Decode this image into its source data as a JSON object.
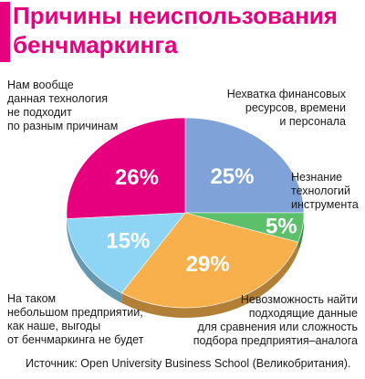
{
  "title": {
    "line1": "Причины неиспользования",
    "line2": "бенчмаркинга"
  },
  "colors": {
    "accent": "#e6007e"
  },
  "chart_data": {
    "type": "pie",
    "title": "Причины неиспользования бенчмаркинга",
    "slices": [
      {
        "label": "Нехватка финансовых ресурсов, времени и персонала",
        "value": 25,
        "value_label": "25%",
        "color": "#7fa3d8"
      },
      {
        "label": "Незнание технологий инструмента",
        "value": 5,
        "value_label": "5%",
        "color": "#5cc06a"
      },
      {
        "label": "Невозможность найти подходящие данные для сравнения или сложность подбора предприятия–аналога",
        "value": 29,
        "value_label": "29%",
        "color": "#f7b04c"
      },
      {
        "label": "На таком небольшом предприятии, как наше, выгоды от бенчмаркинга не будет",
        "value": 15,
        "value_label": "15%",
        "color": "#8ed4f5"
      },
      {
        "label": "Нам вообще данная технология не подходит по разным причинам",
        "value": 26,
        "value_label": "26%",
        "color": "#e6007e"
      }
    ]
  },
  "labels": {
    "top_left": [
      "Нам вообще",
      "данная технология",
      "не подходит",
      "по разным причинам"
    ],
    "top_right": [
      "Нехватка финансовых",
      "ресурсов, времени",
      "и персонала"
    ],
    "right": [
      "Незнание",
      "технологий",
      "инструмента"
    ],
    "bottom_left": [
      "На таком",
      "небольшом предприятии,",
      "как наше, выгоды",
      "от бенчмаркинга не будет"
    ],
    "bottom_right": [
      "Невозможность найти",
      "подходящие данные",
      "для сравнения или сложность",
      "подбора предприятия–аналога"
    ]
  },
  "source": "Источник: Open University Business School (Великобритания)."
}
